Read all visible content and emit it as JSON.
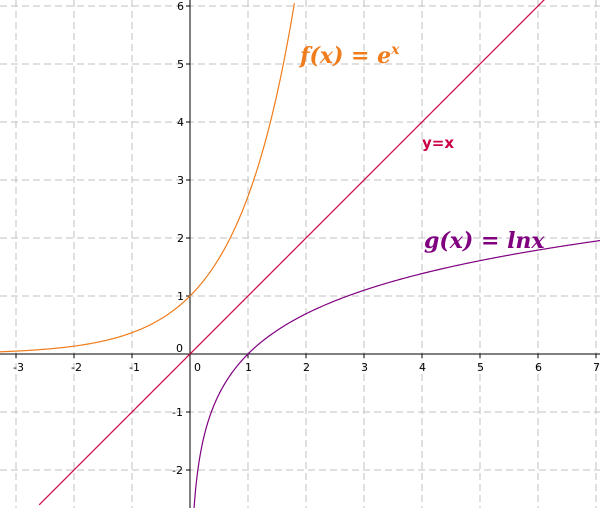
{
  "chart_data": {
    "type": "line",
    "grid": true,
    "xlim": [
      -3.3,
      7.15
    ],
    "ylim": [
      -2.7,
      6.15
    ],
    "x_ticks": [
      -3,
      -2,
      -1,
      0,
      1,
      2,
      3,
      4,
      5,
      6,
      7
    ],
    "y_ticks": [
      -2,
      -1,
      0,
      1,
      2,
      3,
      4,
      5,
      6
    ],
    "series": [
      {
        "name": "f(x) = e^x",
        "label_parts": {
          "base": "f(x) = e",
          "exp": "x"
        },
        "function": "exp",
        "color": "#f07c1b",
        "x": [
          -3.3,
          -3,
          -2,
          -1,
          0,
          0.5,
          1,
          1.5,
          1.8
        ],
        "y": [
          0.037,
          0.05,
          0.135,
          0.368,
          1,
          1.649,
          2.718,
          4.482,
          6.05
        ]
      },
      {
        "name": "y=x",
        "function": "identity",
        "color": "#cc0044",
        "x": [
          -2.6,
          6.15
        ],
        "y": [
          -2.6,
          6.15
        ]
      },
      {
        "name": "g(x) = lnx",
        "function": "ln",
        "color": "#800080",
        "x": [
          0.066,
          0.1,
          0.25,
          0.5,
          1,
          2,
          3,
          4,
          5,
          6,
          7.15
        ],
        "y": [
          -2.72,
          -2.303,
          -1.386,
          -0.693,
          0,
          0.693,
          1.099,
          1.386,
          1.609,
          1.792,
          1.967
        ]
      }
    ]
  }
}
